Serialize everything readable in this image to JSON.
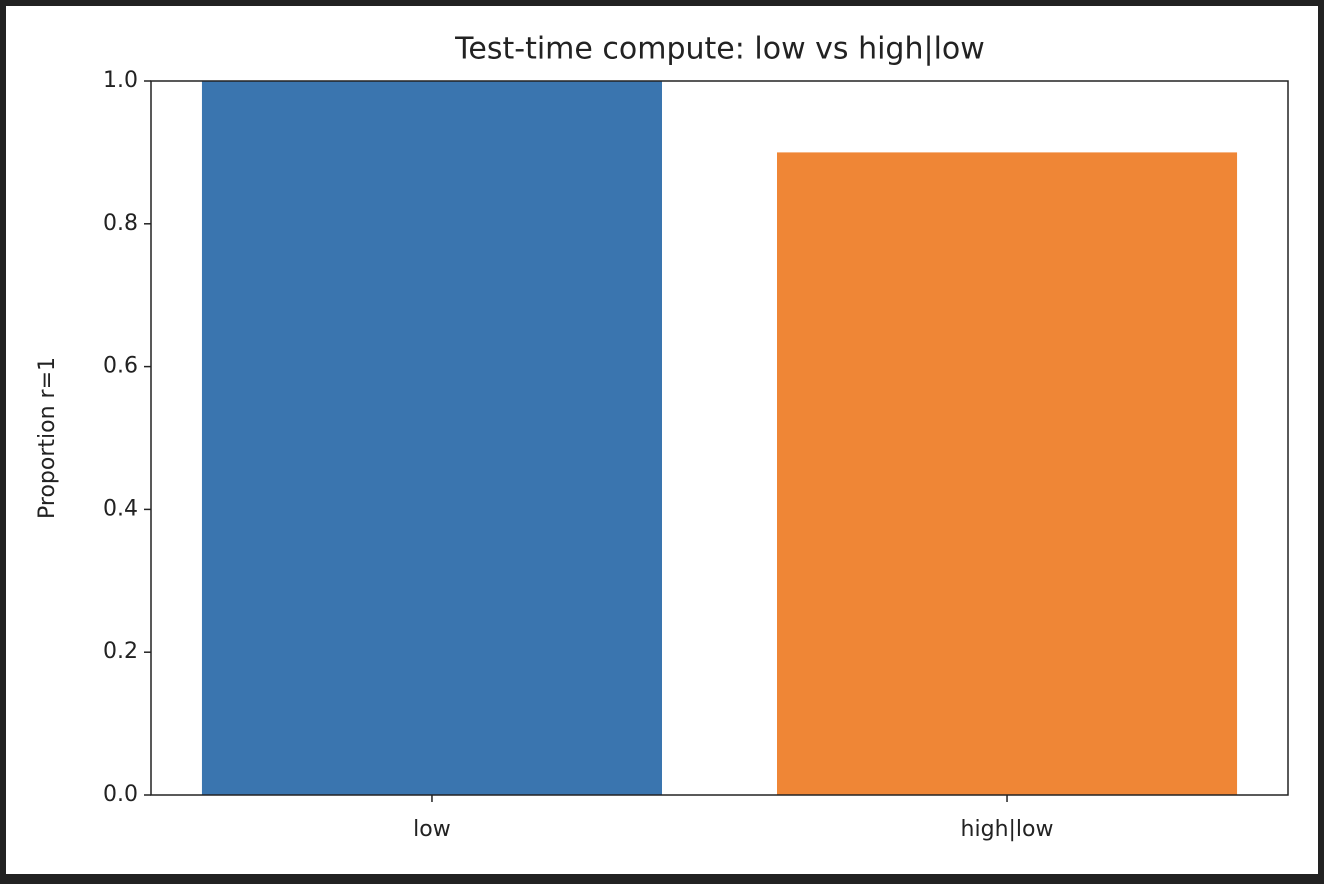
{
  "chart_data": {
    "type": "bar",
    "title": "Test-time compute: low vs high|low",
    "ylabel": "Proportion r=1",
    "categories": [
      "low",
      "high|low"
    ],
    "values": [
      1.0,
      0.9
    ],
    "colors": [
      "#3a75af",
      "#ef8636"
    ],
    "ylim": [
      0,
      1
    ],
    "yticks": [
      {
        "value": 0,
        "label": "0.0"
      },
      0.2,
      0.4,
      0.6,
      0.8,
      {
        "value": 1,
        "label": "1.0"
      }
    ]
  }
}
